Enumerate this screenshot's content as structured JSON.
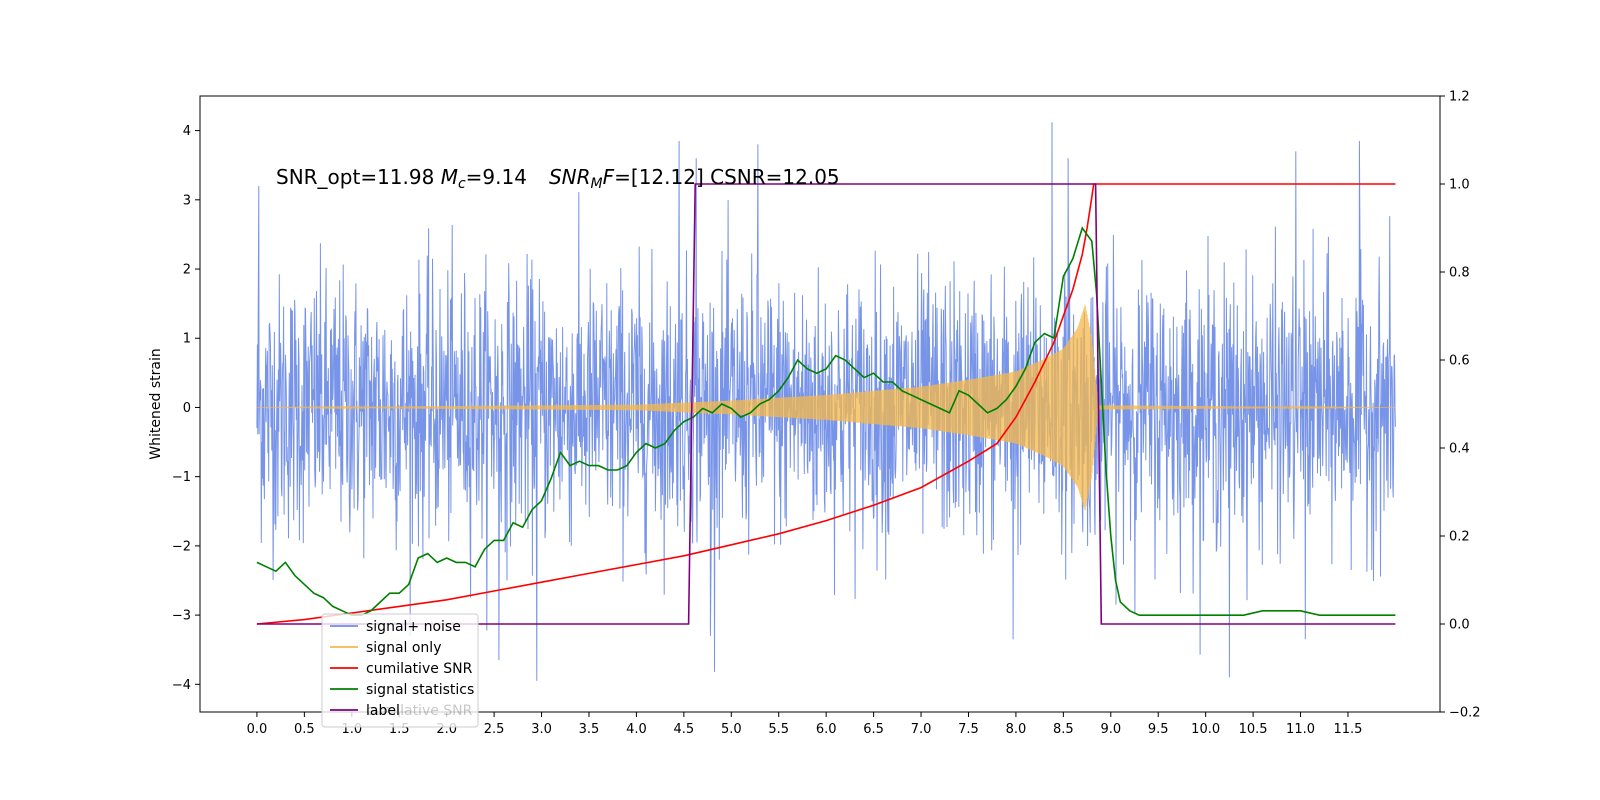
{
  "figure": {
    "annotation_parts": {
      "snr_opt": "SNR_opt=11.98",
      "mc_symbol": "M",
      "mc_sub": "c",
      "mc_value": "=9.14",
      "snr_symbol": "SNR",
      "snr_sub": "M",
      "snr_f": "F",
      "snr_value": "=[12.12]",
      "csnr": "CSNR=12.05"
    },
    "legend_hidden_text": "cumilative SNR"
  },
  "chart_data": {
    "type": "line",
    "title": "",
    "xlabel": "",
    "ylabel": "Whitened strain",
    "y2label": "",
    "xlim": [
      -0.6,
      12.47
    ],
    "ylim": [
      -4.4,
      4.5
    ],
    "y2lim": [
      -0.2,
      1.2
    ],
    "x_ticks": [
      0.0,
      0.5,
      1.0,
      1.5,
      2.0,
      2.5,
      3.0,
      3.5,
      4.0,
      4.5,
      5.0,
      5.5,
      6.0,
      6.5,
      7.0,
      7.5,
      8.0,
      8.5,
      9.0,
      9.5,
      10.0,
      10.5,
      11.0,
      11.5
    ],
    "x_tick_labels": [
      "0.0",
      "0.5",
      "1.0",
      "1.5",
      "2.0",
      "2.5",
      "3.0",
      "3.5",
      "4.0",
      "4.5",
      "5.0",
      "5.5",
      "6.0",
      "6.5",
      "7.0",
      "7.5",
      "8.0",
      "8.5",
      "9.0",
      "9.5",
      "10.0",
      "10.5",
      "11.0",
      "11.5"
    ],
    "y_ticks": [
      -4,
      -3,
      -2,
      -1,
      0,
      1,
      2,
      3,
      4
    ],
    "y_tick_labels": [
      "−4",
      "−3",
      "−2",
      "−1",
      "0",
      "1",
      "2",
      "3",
      "4"
    ],
    "y2_ticks": [
      -0.2,
      0.0,
      0.2,
      0.4,
      0.6,
      0.8,
      1.0,
      1.2
    ],
    "y2_tick_labels": [
      "−0.2",
      "0.0",
      "0.2",
      "0.4",
      "0.6",
      "0.8",
      "1.0",
      "1.2"
    ],
    "legend_position": "lower-left",
    "grid": false,
    "series": [
      {
        "name": "signal+ noise",
        "color": "#6b8be6",
        "axis": "left",
        "kind": "noise",
        "x_range": [
          0.0,
          12.0
        ],
        "spikes": [
          {
            "x": 0.02,
            "y": 3.2
          },
          {
            "x": 2.95,
            "y": -3.95
          },
          {
            "x": 4.45,
            "y": 3.85
          },
          {
            "x": 4.63,
            "y": 3.6
          },
          {
            "x": 5.28,
            "y": 3.8
          },
          {
            "x": 4.78,
            "y": -3.3
          },
          {
            "x": 8.38,
            "y": 4.12
          },
          {
            "x": 8.55,
            "y": 3.6
          },
          {
            "x": 10.25,
            "y": -3.9
          },
          {
            "x": 10.95,
            "y": 3.7
          },
          {
            "x": 11.62,
            "y": 3.85
          },
          {
            "x": 7.97,
            "y": -3.35
          },
          {
            "x": 2.55,
            "y": -3.65
          },
          {
            "x": 11.05,
            "y": -3.35
          }
        ]
      },
      {
        "name": "signal only",
        "color": "#f5b84a",
        "axis": "left",
        "kind": "chirp",
        "x_range": [
          0.0,
          12.0
        ],
        "envelope": [
          [
            0.0,
            0.0
          ],
          [
            4.0,
            0.04
          ],
          [
            5.0,
            0.1
          ],
          [
            6.0,
            0.18
          ],
          [
            7.0,
            0.3
          ],
          [
            7.5,
            0.4
          ],
          [
            8.0,
            0.52
          ],
          [
            8.3,
            0.7
          ],
          [
            8.5,
            0.85
          ],
          [
            8.65,
            1.15
          ],
          [
            8.73,
            1.5
          ],
          [
            8.8,
            1.0
          ],
          [
            8.87,
            0.03
          ],
          [
            12.0,
            0.0
          ]
        ]
      },
      {
        "name": "cumilative SNR",
        "color": "#ff0000",
        "axis": "right",
        "x": [
          0.0,
          0.5,
          1.0,
          1.5,
          2.0,
          2.5,
          3.0,
          3.5,
          4.0,
          4.5,
          5.0,
          5.5,
          6.0,
          6.5,
          7.0,
          7.5,
          7.8,
          8.0,
          8.2,
          8.4,
          8.6,
          8.7,
          8.75,
          8.8,
          8.82,
          8.85,
          12.0
        ],
        "y": [
          0.0,
          0.01,
          0.025,
          0.04,
          0.055,
          0.075,
          0.095,
          0.115,
          0.135,
          0.155,
          0.18,
          0.205,
          0.235,
          0.27,
          0.31,
          0.37,
          0.41,
          0.47,
          0.55,
          0.64,
          0.76,
          0.84,
          0.9,
          0.97,
          1.0,
          1.0,
          1.0
        ]
      },
      {
        "name": "signal statistics",
        "color": "#008000",
        "axis": "right",
        "x": [
          0.0,
          0.1,
          0.2,
          0.3,
          0.4,
          0.5,
          0.6,
          0.7,
          0.8,
          0.9,
          1.0,
          1.1,
          1.2,
          1.3,
          1.4,
          1.5,
          1.6,
          1.7,
          1.8,
          1.9,
          2.0,
          2.1,
          2.2,
          2.3,
          2.4,
          2.5,
          2.6,
          2.7,
          2.8,
          2.9,
          3.0,
          3.1,
          3.2,
          3.3,
          3.4,
          3.5,
          3.6,
          3.7,
          3.8,
          3.9,
          4.0,
          4.1,
          4.2,
          4.3,
          4.4,
          4.5,
          4.6,
          4.7,
          4.8,
          4.9,
          5.0,
          5.1,
          5.2,
          5.3,
          5.4,
          5.5,
          5.6,
          5.7,
          5.8,
          5.9,
          6.0,
          6.1,
          6.2,
          6.3,
          6.4,
          6.5,
          6.6,
          6.7,
          6.8,
          6.9,
          7.0,
          7.1,
          7.2,
          7.3,
          7.4,
          7.5,
          7.6,
          7.7,
          7.8,
          7.9,
          8.0,
          8.1,
          8.2,
          8.3,
          8.4,
          8.5,
          8.6,
          8.7,
          8.8,
          8.85,
          8.9,
          8.95,
          9.0,
          9.05,
          9.1,
          9.2,
          9.3,
          9.5,
          9.7,
          10.0,
          10.2,
          10.4,
          10.6,
          10.8,
          11.0,
          11.2,
          11.4,
          11.6,
          11.8,
          12.0
        ],
        "y": [
          0.14,
          0.13,
          0.12,
          0.14,
          0.11,
          0.09,
          0.07,
          0.06,
          0.04,
          0.03,
          0.02,
          0.02,
          0.03,
          0.05,
          0.07,
          0.07,
          0.09,
          0.15,
          0.16,
          0.14,
          0.15,
          0.14,
          0.14,
          0.13,
          0.17,
          0.19,
          0.19,
          0.23,
          0.22,
          0.26,
          0.28,
          0.33,
          0.39,
          0.36,
          0.37,
          0.36,
          0.36,
          0.35,
          0.35,
          0.36,
          0.39,
          0.41,
          0.4,
          0.41,
          0.44,
          0.46,
          0.47,
          0.49,
          0.48,
          0.5,
          0.49,
          0.47,
          0.48,
          0.5,
          0.51,
          0.53,
          0.56,
          0.6,
          0.58,
          0.57,
          0.58,
          0.61,
          0.6,
          0.58,
          0.56,
          0.57,
          0.55,
          0.55,
          0.53,
          0.52,
          0.51,
          0.5,
          0.49,
          0.48,
          0.53,
          0.52,
          0.5,
          0.48,
          0.49,
          0.51,
          0.54,
          0.58,
          0.64,
          0.66,
          0.65,
          0.79,
          0.83,
          0.9,
          0.87,
          0.75,
          0.55,
          0.35,
          0.2,
          0.1,
          0.05,
          0.03,
          0.02,
          0.02,
          0.02,
          0.02,
          0.02,
          0.02,
          0.03,
          0.03,
          0.03,
          0.02,
          0.02,
          0.02,
          0.02,
          0.02
        ]
      },
      {
        "name": "label",
        "color": "#800080",
        "axis": "right",
        "x": [
          0.0,
          4.55,
          4.62,
          4.62,
          8.84,
          8.84,
          8.9,
          12.0
        ],
        "y": [
          0.0,
          0.0,
          1.0,
          1.0,
          1.0,
          1.0,
          0.0,
          0.0
        ]
      }
    ]
  }
}
